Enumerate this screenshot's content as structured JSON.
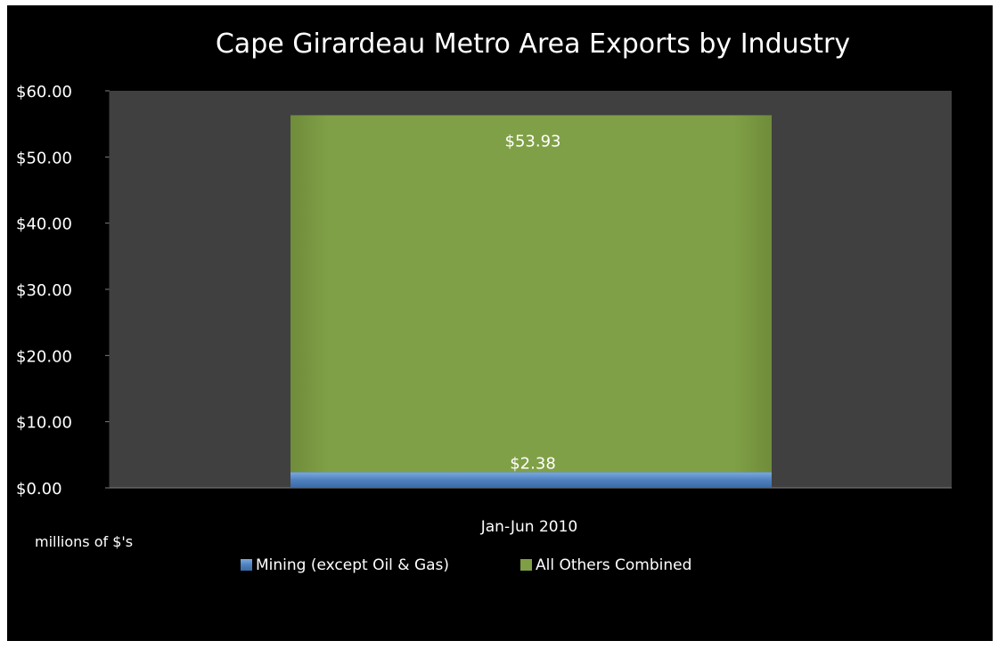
{
  "chart_data": {
    "type": "bar",
    "stacked": true,
    "title": "Cape Girardeau Metro Area Exports by Industry",
    "categories": [
      "Jan-Jun 2010"
    ],
    "series": [
      {
        "name": "Mining (except Oil & Gas)",
        "values": [
          2.38
        ],
        "label": "$2.38",
        "color": "#4f81bd"
      },
      {
        "name": "All Others Combined",
        "values": [
          53.93
        ],
        "label": "$53.93",
        "color": "#7f9e45"
      }
    ],
    "ylim": [
      0,
      60
    ],
    "yticks": [
      0,
      10,
      20,
      30,
      40,
      50,
      60
    ],
    "ytick_labels": [
      "$0.00",
      "$10.00",
      "$20.00",
      "$30.00",
      "$40.00",
      "$50.00",
      "$60.00"
    ],
    "ylabel": "millions of $'s",
    "xlabel": "",
    "legend_position": "bottom",
    "plot_background": "#404040",
    "chart_background": "#000000",
    "grid": false
  }
}
